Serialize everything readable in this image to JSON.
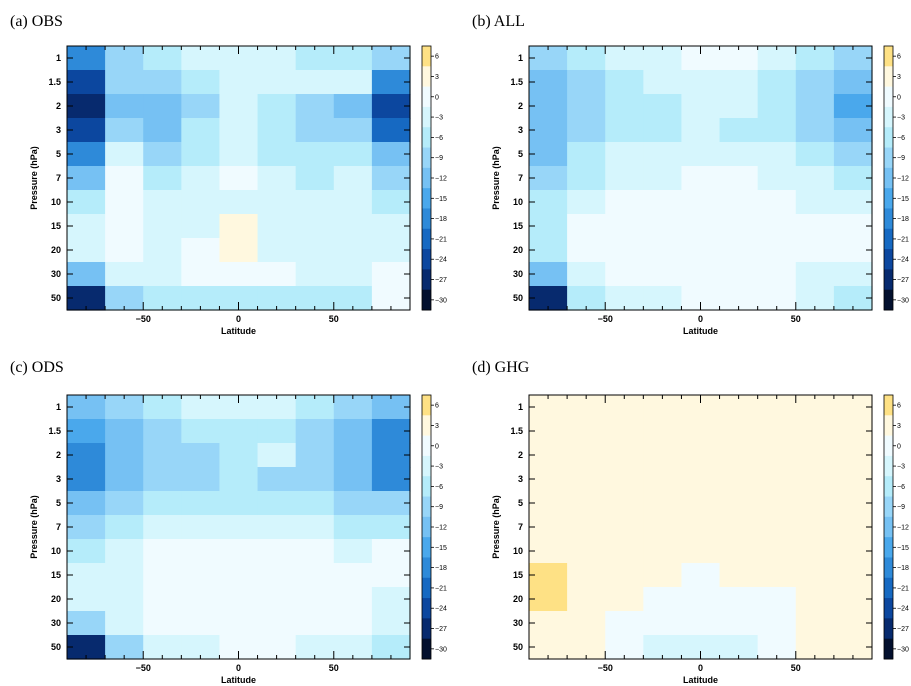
{
  "chart_data": [
    {
      "type": "heatmap",
      "title": "(a) OBS",
      "xlabel": "Latitude",
      "ylabel": "Pressure (hPa)",
      "x_ticks": [
        -50,
        0,
        50
      ],
      "xlim": [
        -90,
        90
      ],
      "y_categories": [
        "1",
        "1.5",
        "2",
        "3",
        "5",
        "7",
        "10",
        "15",
        "20",
        "30",
        "50"
      ],
      "x_bins": [
        [
          -90,
          -70
        ],
        [
          -70,
          -50
        ],
        [
          -50,
          -30
        ],
        [
          -30,
          -10
        ],
        [
          -10,
          10
        ],
        [
          10,
          30
        ],
        [
          30,
          50
        ],
        [
          50,
          70
        ],
        [
          70,
          90
        ]
      ],
      "values": [
        [
          -21,
          -10,
          -7,
          -4,
          -4,
          -4,
          -7,
          -7,
          -10
        ],
        [
          -25,
          -10,
          -10,
          -7,
          -4,
          -4,
          -4,
          -4,
          -21
        ],
        [
          -30,
          -15,
          -15,
          -12,
          -4,
          -7,
          -10,
          -15,
          -27
        ],
        [
          -27,
          -10,
          -15,
          -7,
          -4,
          -7,
          -10,
          -10,
          -24
        ],
        [
          -21,
          -4,
          -12,
          -7,
          -4,
          -7,
          -7,
          -7,
          -15
        ],
        [
          -15,
          -2,
          -7,
          -4,
          -2,
          -4,
          -7,
          -4,
          -10
        ],
        [
          -7,
          -2,
          -4,
          -4,
          -4,
          -4,
          -4,
          -4,
          -7
        ],
        [
          -4,
          -2,
          -4,
          -4,
          1,
          -4,
          -4,
          -4,
          -4
        ],
        [
          -4,
          -2,
          -4,
          -2,
          1,
          -4,
          -4,
          -4,
          -4
        ],
        [
          -15,
          -4,
          -4,
          -2,
          -2,
          -2,
          -4,
          -4,
          -2
        ],
        [
          -30,
          -10,
          -7,
          -7,
          -7,
          -7,
          -7,
          -7,
          -2
        ]
      ]
    },
    {
      "type": "heatmap",
      "title": "(b) ALL",
      "xlabel": "Latitude",
      "ylabel": "Pressure (hPa)",
      "x_ticks": [
        -50,
        0,
        50
      ],
      "xlim": [
        -90,
        90
      ],
      "y_categories": [
        "1",
        "1.5",
        "2",
        "3",
        "5",
        "7",
        "10",
        "15",
        "20",
        "30",
        "50"
      ],
      "x_bins": [
        [
          -90,
          -70
        ],
        [
          -70,
          -50
        ],
        [
          -50,
          -30
        ],
        [
          -30,
          -10
        ],
        [
          -10,
          10
        ],
        [
          10,
          30
        ],
        [
          30,
          50
        ],
        [
          50,
          70
        ],
        [
          70,
          90
        ]
      ],
      "values": [
        [
          -10,
          -7,
          -4,
          -4,
          -2,
          -2,
          -4,
          -7,
          -10
        ],
        [
          -15,
          -10,
          -7,
          -4,
          -4,
          -4,
          -7,
          -10,
          -15
        ],
        [
          -15,
          -10,
          -7,
          -7,
          -4,
          -4,
          -7,
          -10,
          -18
        ],
        [
          -15,
          -10,
          -7,
          -7,
          -4,
          -7,
          -7,
          -10,
          -15
        ],
        [
          -15,
          -7,
          -4,
          -4,
          -4,
          -4,
          -4,
          -7,
          -10
        ],
        [
          -10,
          -7,
          -4,
          -4,
          -2,
          -2,
          -4,
          -4,
          -7
        ],
        [
          -7,
          -4,
          -2,
          -2,
          -2,
          -2,
          -2,
          -4,
          -4
        ],
        [
          -7,
          -2,
          -2,
          -2,
          -2,
          -2,
          -2,
          -2,
          -2
        ],
        [
          -7,
          -2,
          -2,
          -2,
          -2,
          -2,
          -2,
          -2,
          -2
        ],
        [
          -15,
          -4,
          -2,
          -2,
          -2,
          -2,
          -2,
          -4,
          -4
        ],
        [
          -30,
          -7,
          -4,
          -4,
          -2,
          -2,
          -2,
          -4,
          -7
        ]
      ]
    },
    {
      "type": "heatmap",
      "title": "(c) ODS",
      "xlabel": "Latitude",
      "ylabel": "Pressure (hPa)",
      "x_ticks": [
        -50,
        0,
        50
      ],
      "xlim": [
        -90,
        90
      ],
      "y_categories": [
        "1",
        "1.5",
        "2",
        "3",
        "5",
        "7",
        "10",
        "15",
        "20",
        "30",
        "50"
      ],
      "x_bins": [
        [
          -90,
          -70
        ],
        [
          -70,
          -50
        ],
        [
          -50,
          -30
        ],
        [
          -30,
          -10
        ],
        [
          -10,
          10
        ],
        [
          10,
          30
        ],
        [
          30,
          50
        ],
        [
          50,
          70
        ],
        [
          70,
          90
        ]
      ],
      "values": [
        [
          -15,
          -10,
          -7,
          -4,
          -4,
          -4,
          -7,
          -10,
          -15
        ],
        [
          -18,
          -15,
          -10,
          -7,
          -7,
          -7,
          -10,
          -15,
          -21
        ],
        [
          -21,
          -15,
          -10,
          -10,
          -7,
          -4,
          -10,
          -15,
          -21
        ],
        [
          -21,
          -15,
          -10,
          -10,
          -7,
          -10,
          -10,
          -15,
          -21
        ],
        [
          -15,
          -10,
          -7,
          -7,
          -7,
          -7,
          -7,
          -10,
          -10
        ],
        [
          -10,
          -7,
          -4,
          -4,
          -4,
          -4,
          -4,
          -7,
          -7
        ],
        [
          -7,
          -4,
          -2,
          -2,
          -2,
          -2,
          -2,
          -4,
          -2
        ],
        [
          -4,
          -4,
          -2,
          -2,
          -2,
          -2,
          -2,
          -2,
          -2
        ],
        [
          -4,
          -4,
          -2,
          -2,
          -2,
          -2,
          -2,
          -2,
          -4
        ],
        [
          -10,
          -4,
          -2,
          -2,
          -2,
          -2,
          -2,
          -2,
          -4
        ],
        [
          -30,
          -12,
          -4,
          -4,
          -2,
          -2,
          -4,
          -4,
          -7
        ]
      ]
    },
    {
      "type": "heatmap",
      "title": "(d) GHG",
      "xlabel": "Latitude",
      "ylabel": "Pressure (hPa)",
      "x_ticks": [
        -50,
        0,
        50
      ],
      "xlim": [
        -90,
        90
      ],
      "y_categories": [
        "1",
        "1.5",
        "2",
        "3",
        "5",
        "7",
        "10",
        "15",
        "20",
        "30",
        "50"
      ],
      "x_bins": [
        [
          -90,
          -70
        ],
        [
          -70,
          -50
        ],
        [
          -50,
          -30
        ],
        [
          -30,
          -10
        ],
        [
          -10,
          10
        ],
        [
          10,
          30
        ],
        [
          30,
          50
        ],
        [
          50,
          70
        ],
        [
          70,
          90
        ]
      ],
      "values": [
        [
          1,
          1,
          1,
          1,
          1,
          1,
          1,
          1,
          1
        ],
        [
          1,
          1,
          1,
          1,
          1,
          1,
          1,
          1,
          1
        ],
        [
          1,
          1,
          1,
          1,
          1,
          1,
          1,
          1,
          1
        ],
        [
          1,
          1,
          1,
          1,
          1,
          1,
          1,
          1,
          1
        ],
        [
          1,
          1,
          1,
          1,
          1,
          1,
          1,
          1,
          1
        ],
        [
          1,
          1,
          1,
          1,
          1,
          1,
          1,
          1,
          1
        ],
        [
          1,
          1,
          1,
          1,
          1,
          1,
          1,
          1,
          1
        ],
        [
          4,
          1,
          1,
          1,
          -2,
          1,
          1,
          1,
          1
        ],
        [
          4,
          1,
          1,
          -2,
          -2,
          -2,
          -2,
          1,
          1
        ],
        [
          1,
          1,
          -2,
          -2,
          -2,
          -2,
          -2,
          1,
          1
        ],
        [
          1,
          1,
          -2,
          -4,
          -4,
          -4,
          -2,
          1,
          1
        ]
      ]
    }
  ],
  "colorbar": {
    "ticks": [
      "6",
      "3",
      "0",
      "-3",
      "-6",
      "-9",
      "-12",
      "-15",
      "-18",
      "-21",
      "-24",
      "-27",
      "-30"
    ],
    "bins": [
      {
        "lo": 3,
        "hi": 6,
        "color": "#fee185"
      },
      {
        "lo": 0,
        "hi": 3,
        "color": "#fff8df"
      },
      {
        "lo": -3,
        "hi": 0,
        "color": "#f0fbff"
      },
      {
        "lo": -6,
        "hi": -3,
        "color": "#d6f6fd"
      },
      {
        "lo": -9,
        "hi": -6,
        "color": "#b5ecfa"
      },
      {
        "lo": -12,
        "hi": -9,
        "color": "#98d6f8"
      },
      {
        "lo": -15,
        "hi": -12,
        "color": "#76c1f3"
      },
      {
        "lo": -18,
        "hi": -15,
        "color": "#4aa8ec"
      },
      {
        "lo": -21,
        "hi": -18,
        "color": "#2e8ad9"
      },
      {
        "lo": -24,
        "hi": -21,
        "color": "#1669c2"
      },
      {
        "lo": -27,
        "hi": -24,
        "color": "#0c479f"
      },
      {
        "lo": -30,
        "hi": -27,
        "color": "#072a6e"
      },
      {
        "lo": -33,
        "hi": -30,
        "color": "#03102e"
      }
    ]
  }
}
